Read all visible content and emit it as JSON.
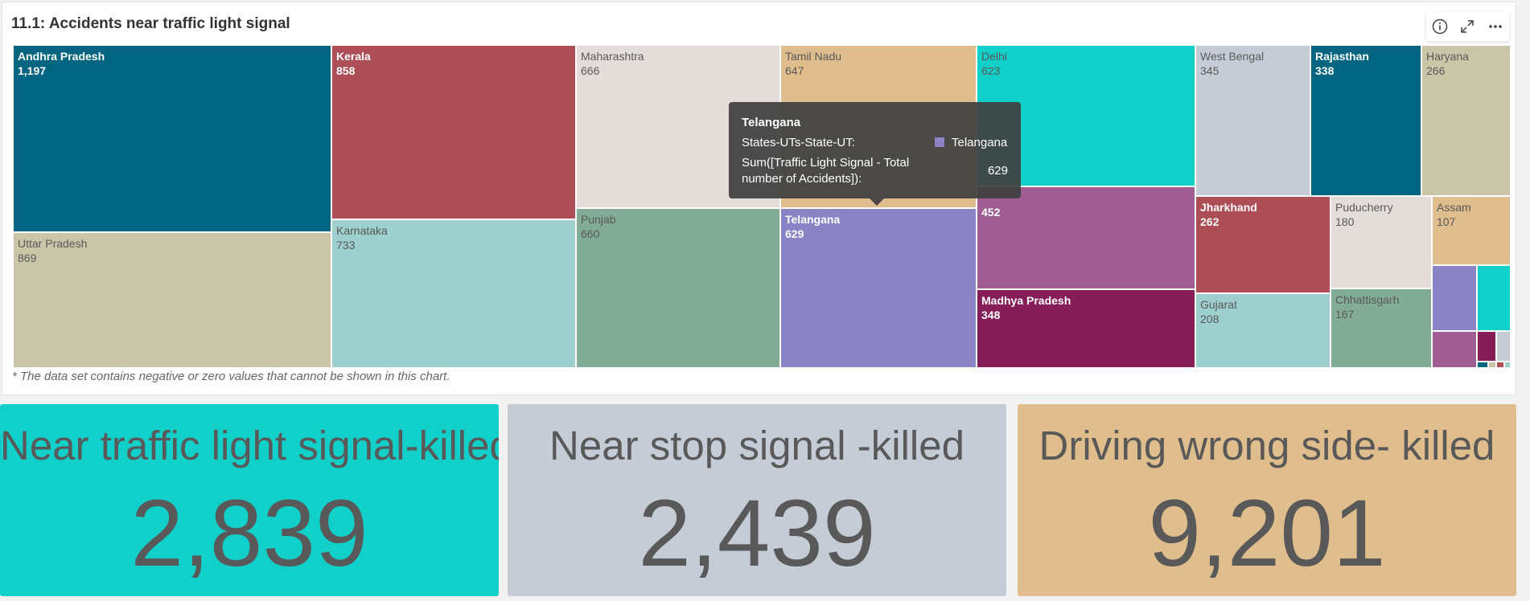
{
  "panel": {
    "title": "11.1: Accidents near traffic light signal",
    "footnote": "* The data set contains negative or zero values that cannot be shown in this chart.",
    "toolbar": [
      "info-icon",
      "expand-icon",
      "more-icon"
    ]
  },
  "chart_data": {
    "type": "treemap",
    "dimension": "States-UTs-State-UT",
    "measure": "Sum([Traffic Light Signal - Total number of Accidents])",
    "cells": [
      {
        "label": "Andhra Pradesh",
        "value_label": "1,197",
        "value": 1197,
        "color": "#006580",
        "text_dark_bg": true
      },
      {
        "label": "Uttar Pradesh",
        "value_label": "869",
        "value": 869,
        "color": "#c9c6a8",
        "text_dark_bg": false
      },
      {
        "label": "Kerala",
        "value_label": "858",
        "value": 858,
        "color": "#ad4d56",
        "text_dark_bg": true
      },
      {
        "label": "Karnataka",
        "value_label": "733",
        "value": 733,
        "color": "#9ccfce",
        "text_dark_bg": false
      },
      {
        "label": "Maharashtra",
        "value_label": "666",
        "value": 666,
        "color": "#e3dcd9",
        "text_dark_bg": false
      },
      {
        "label": "Punjab",
        "value_label": "660",
        "value": 660,
        "color": "#83ac97",
        "text_dark_bg": false
      },
      {
        "label": "Tamil Nadu",
        "value_label": "647",
        "value": 647,
        "color": "#e0bd8c",
        "text_dark_bg": false
      },
      {
        "label": "Telangana",
        "value_label": "629",
        "value": 629,
        "color": "#8a84c6",
        "text_dark_bg": true
      },
      {
        "label": "Delhi",
        "value_label": "623",
        "value": 623,
        "color": "#11cfc9",
        "text_dark_bg": false
      },
      {
        "label": "",
        "value_label": "452",
        "value": 452,
        "color": "#a05d91",
        "text_dark_bg": true
      },
      {
        "label": "Madhya Pradesh",
        "value_label": "348",
        "value": 348,
        "color": "#861c58",
        "text_dark_bg": true
      },
      {
        "label": "West Bengal",
        "value_label": "345",
        "value": 345,
        "color": "#c5ccd5",
        "text_dark_bg": false
      },
      {
        "label": "Rajasthan",
        "value_label": "338",
        "value": 338,
        "color": "#006580",
        "text_dark_bg": true
      },
      {
        "label": "Haryana",
        "value_label": "266",
        "value": 266,
        "color": "#c9c6a8",
        "text_dark_bg": false
      },
      {
        "label": "Jharkhand",
        "value_label": "262",
        "value": 262,
        "color": "#ad4d56",
        "text_dark_bg": true
      },
      {
        "label": "Gujarat",
        "value_label": "208",
        "value": 208,
        "color": "#9ccfce",
        "text_dark_bg": false
      },
      {
        "label": "Puducherry",
        "value_label": "180",
        "value": 180,
        "color": "#e3dcd9",
        "text_dark_bg": false
      },
      {
        "label": "Chhattisgarh",
        "value_label": "167",
        "value": 167,
        "color": "#83ac97",
        "text_dark_bg": false
      },
      {
        "label": "Assam",
        "value_label": "107",
        "value": 107,
        "color": "#e0bd8c",
        "text_dark_bg": false
      },
      {
        "label": "",
        "value_label": "",
        "value": null,
        "color": "#8a84c6",
        "text_dark_bg": true
      },
      {
        "label": "",
        "value_label": "",
        "value": null,
        "color": "#11cfc9",
        "text_dark_bg": false
      },
      {
        "label": "",
        "value_label": "",
        "value": null,
        "color": "#a05d91",
        "text_dark_bg": true
      },
      {
        "label": "",
        "value_label": "",
        "value": null,
        "color": "#861c58",
        "text_dark_bg": true
      },
      {
        "label": "",
        "value_label": "",
        "value": null,
        "color": "#c5ccd5",
        "text_dark_bg": false
      },
      {
        "label": "",
        "value_label": "",
        "value": null,
        "color": "#006580",
        "text_dark_bg": true
      },
      {
        "label": "",
        "value_label": "",
        "value": null,
        "color": "#c9c6a8",
        "text_dark_bg": false
      },
      {
        "label": "",
        "value_label": "",
        "value": null,
        "color": "#ad4d56",
        "text_dark_bg": true
      },
      {
        "label": "",
        "value_label": "",
        "value": null,
        "color": "#9ccfce",
        "text_dark_bg": false
      }
    ]
  },
  "tooltip": {
    "title": "Telangana",
    "field1_label": "States-UTs-State-UT:",
    "field1_value": "Telangana",
    "field1_swatch": "#8a84c6",
    "field2_label": "Sum([Traffic Light Signal - Total number of Accidents]):",
    "field2_value": "629"
  },
  "kpis": [
    {
      "title": "Near traffic light signal-killed",
      "value": "2,839",
      "color": "#11cfc9"
    },
    {
      "title": "Near stop signal -killed",
      "value": "2,439",
      "color": "#c5ccd5"
    },
    {
      "title": "Driving wrong side- killed",
      "value": "9,201",
      "color": "#e0bd8c"
    }
  ]
}
